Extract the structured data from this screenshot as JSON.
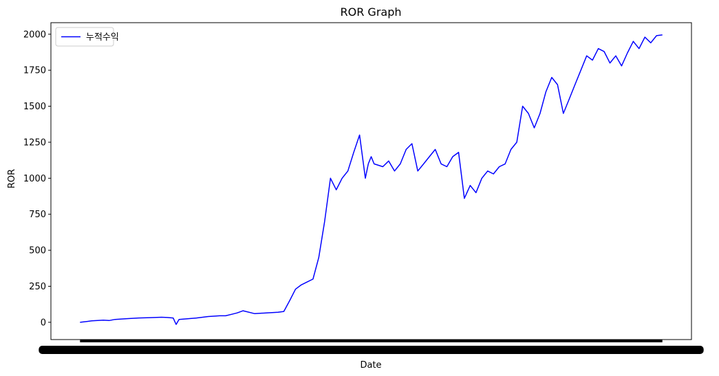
{
  "chart_data": {
    "type": "line",
    "title": "ROR Graph",
    "xlabel": "Date",
    "ylabel": "ROR",
    "ylim": [
      -120,
      2080
    ],
    "yticks": [
      0,
      250,
      500,
      750,
      1000,
      1250,
      1500,
      1750,
      2000
    ],
    "grid": false,
    "legend_position": "top-left",
    "x_tick_labels_overlapping": true,
    "series": [
      {
        "name": "누적수익",
        "color": "#0000ff",
        "x": [
          0,
          0.02,
          0.04,
          0.05,
          0.06,
          0.08,
          0.1,
          0.12,
          0.14,
          0.15,
          0.16,
          0.165,
          0.17,
          0.2,
          0.22,
          0.24,
          0.25,
          0.26,
          0.27,
          0.28,
          0.3,
          0.32,
          0.34,
          0.35,
          0.36,
          0.37,
          0.38,
          0.39,
          0.4,
          0.41,
          0.42,
          0.43,
          0.44,
          0.45,
          0.46,
          0.47,
          0.48,
          0.49,
          0.495,
          0.5,
          0.505,
          0.52,
          0.53,
          0.54,
          0.55,
          0.56,
          0.57,
          0.58,
          0.59,
          0.6,
          0.61,
          0.62,
          0.63,
          0.64,
          0.65,
          0.66,
          0.67,
          0.68,
          0.69,
          0.7,
          0.71,
          0.72,
          0.73,
          0.74,
          0.75,
          0.76,
          0.77,
          0.78,
          0.79,
          0.8,
          0.81,
          0.82,
          0.83,
          0.84,
          0.85,
          0.86,
          0.87,
          0.88,
          0.89,
          0.9,
          0.91,
          0.92,
          0.93,
          0.94,
          0.95,
          0.96,
          0.97,
          0.98,
          0.99,
          1.0
        ],
        "values": [
          0,
          10,
          15,
          12,
          20,
          25,
          30,
          32,
          35,
          33,
          30,
          -15,
          20,
          30,
          40,
          45,
          45,
          55,
          65,
          80,
          60,
          65,
          70,
          75,
          150,
          230,
          260,
          280,
          300,
          450,
          700,
          1000,
          920,
          1000,
          1050,
          1180,
          1300,
          1000,
          1100,
          1150,
          1100,
          1080,
          1120,
          1050,
          1100,
          1200,
          1240,
          1050,
          1100,
          1150,
          1200,
          1100,
          1080,
          1150,
          1180,
          860,
          950,
          900,
          1000,
          1050,
          1030,
          1080,
          1100,
          1200,
          1250,
          1500,
          1450,
          1350,
          1450,
          1600,
          1700,
          1650,
          1450,
          1550,
          1650,
          1750,
          1850,
          1820,
          1900,
          1880,
          1800,
          1850,
          1780,
          1870,
          1950,
          1900,
          1980,
          1940,
          1990,
          1995
        ]
      }
    ]
  }
}
